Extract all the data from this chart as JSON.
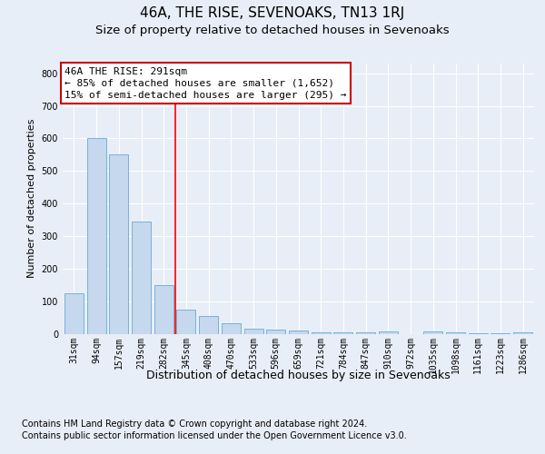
{
  "title": "46A, THE RISE, SEVENOAKS, TN13 1RJ",
  "subtitle": "Size of property relative to detached houses in Sevenoaks",
  "xlabel": "Distribution of detached houses by size in Sevenoaks",
  "ylabel": "Number of detached properties",
  "categories": [
    "31sqm",
    "94sqm",
    "157sqm",
    "219sqm",
    "282sqm",
    "345sqm",
    "408sqm",
    "470sqm",
    "533sqm",
    "596sqm",
    "659sqm",
    "721sqm",
    "784sqm",
    "847sqm",
    "910sqm",
    "972sqm",
    "1035sqm",
    "1098sqm",
    "1161sqm",
    "1223sqm",
    "1286sqm"
  ],
  "values": [
    125,
    600,
    550,
    345,
    150,
    75,
    55,
    33,
    15,
    12,
    10,
    5,
    5,
    3,
    8,
    0,
    7,
    3,
    2,
    1,
    3
  ],
  "bar_color": "#c5d8ed",
  "bar_edge_color": "#6aaad4",
  "red_line_x": 4.5,
  "annotation_text": "46A THE RISE: 291sqm\n← 85% of detached houses are smaller (1,652)\n15% of semi-detached houses are larger (295) →",
  "annotation_box_color": "#ffffff",
  "annotation_box_edge_color": "#cc0000",
  "ylim": [
    0,
    830
  ],
  "yticks": [
    0,
    100,
    200,
    300,
    400,
    500,
    600,
    700,
    800
  ],
  "footer_line1": "Contains HM Land Registry data © Crown copyright and database right 2024.",
  "footer_line2": "Contains public sector information licensed under the Open Government Licence v3.0.",
  "bg_color": "#e8eef7",
  "plot_bg_color": "#e8eef7",
  "grid_color": "#ffffff",
  "title_fontsize": 11,
  "subtitle_fontsize": 9.5,
  "ylabel_fontsize": 8,
  "xlabel_fontsize": 9,
  "tick_fontsize": 7,
  "annotation_fontsize": 8,
  "footer_fontsize": 7
}
